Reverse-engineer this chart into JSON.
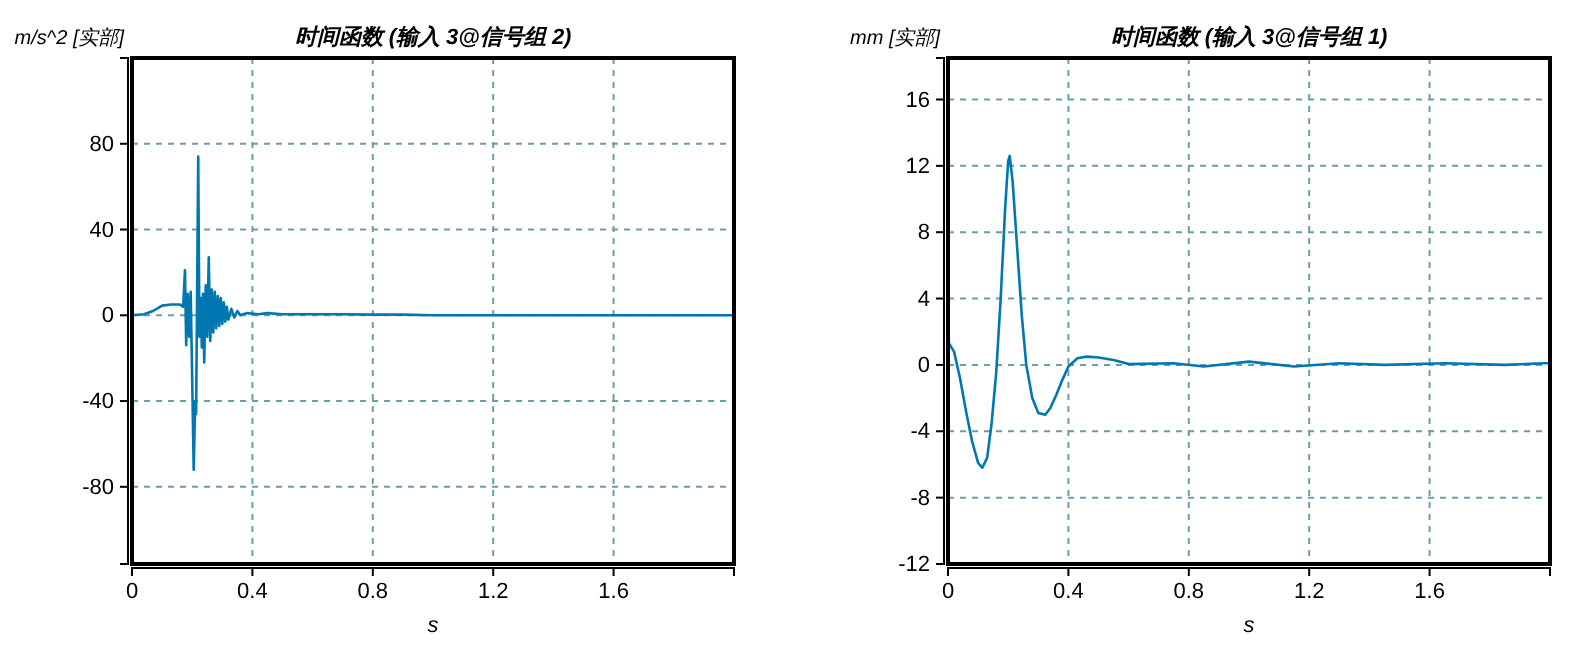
{
  "chart_data": [
    {
      "type": "line",
      "title": "时间函数 (输入 3@信号组 2)",
      "xlabel": "s",
      "ylabel": "m/s^2 [实部]",
      "xlim": [
        0,
        2
      ],
      "xticks": [
        0,
        0.4,
        0.8,
        1.2,
        1.6
      ],
      "ylim": [
        -116,
        120
      ],
      "yticks": [
        -80,
        -40,
        0,
        40,
        80
      ],
      "grid": true,
      "line_style": "solid",
      "marker": "none",
      "series": [
        {
          "color": "#0077b0",
          "x": [
            0,
            0.04,
            0.07,
            0.1,
            0.13,
            0.16,
            0.17,
            0.176,
            0.18,
            0.185,
            0.19,
            0.195,
            0.2,
            0.205,
            0.21,
            0.213,
            0.216,
            0.22,
            0.224,
            0.228,
            0.232,
            0.236,
            0.24,
            0.245,
            0.25,
            0.255,
            0.26,
            0.265,
            0.27,
            0.275,
            0.28,
            0.285,
            0.29,
            0.295,
            0.3,
            0.305,
            0.31,
            0.315,
            0.32,
            0.33,
            0.34,
            0.35,
            0.36,
            0.38,
            0.42,
            0.45,
            0.5,
            0.6,
            0.7,
            0.8,
            0.9,
            1.0,
            1.5,
            2.0
          ],
          "values": [
            0,
            0.5,
            2,
            4.5,
            5,
            5,
            4,
            21,
            -14,
            10,
            -10,
            11,
            -30,
            -72,
            -40,
            -46,
            5,
            74,
            -10,
            8,
            -15,
            10,
            -22,
            14,
            -10,
            27,
            -12,
            12,
            -8,
            11,
            -6,
            9,
            -5,
            8,
            -4,
            6,
            -3,
            4,
            -2,
            3,
            -1,
            2,
            0,
            1,
            0.5,
            1,
            0.5,
            0.5,
            0.5,
            0.3,
            0.3,
            0,
            0,
            0
          ]
        }
      ]
    },
    {
      "type": "line",
      "title": "时间函数 (输入 3@信号组 1)",
      "xlabel": "s",
      "ylabel": "mm [实部]",
      "xlim": [
        0,
        2
      ],
      "xticks": [
        0,
        0.4,
        0.8,
        1.2,
        1.6
      ],
      "ylim": [
        -12,
        18.5
      ],
      "yticks": [
        -12,
        -8,
        -4,
        0,
        4,
        8,
        12,
        16
      ],
      "grid": true,
      "line_style": "solid",
      "marker": "none",
      "series": [
        {
          "color": "#0077b0",
          "x": [
            0,
            0.02,
            0.04,
            0.06,
            0.08,
            0.1,
            0.114,
            0.13,
            0.145,
            0.16,
            0.175,
            0.19,
            0.2,
            0.205,
            0.215,
            0.23,
            0.245,
            0.26,
            0.28,
            0.3,
            0.323,
            0.34,
            0.36,
            0.38,
            0.4,
            0.43,
            0.46,
            0.5,
            0.55,
            0.6,
            0.75,
            0.85,
            1.0,
            1.15,
            1.3,
            1.45,
            1.65,
            1.85,
            1.98,
            2.0
          ],
          "values": [
            1.4,
            0.8,
            -0.8,
            -2.8,
            -4.6,
            -5.9,
            -6.2,
            -5.6,
            -3.5,
            -0.5,
            4,
            9.5,
            12.3,
            12.6,
            11,
            7,
            3,
            0,
            -2,
            -2.9,
            -3,
            -2.6,
            -1.8,
            -0.9,
            -0.1,
            0.4,
            0.5,
            0.45,
            0.3,
            0.05,
            0.1,
            -0.1,
            0.2,
            -0.1,
            0.1,
            0,
            0.1,
            0,
            0.1,
            0.1
          ]
        }
      ]
    }
  ]
}
